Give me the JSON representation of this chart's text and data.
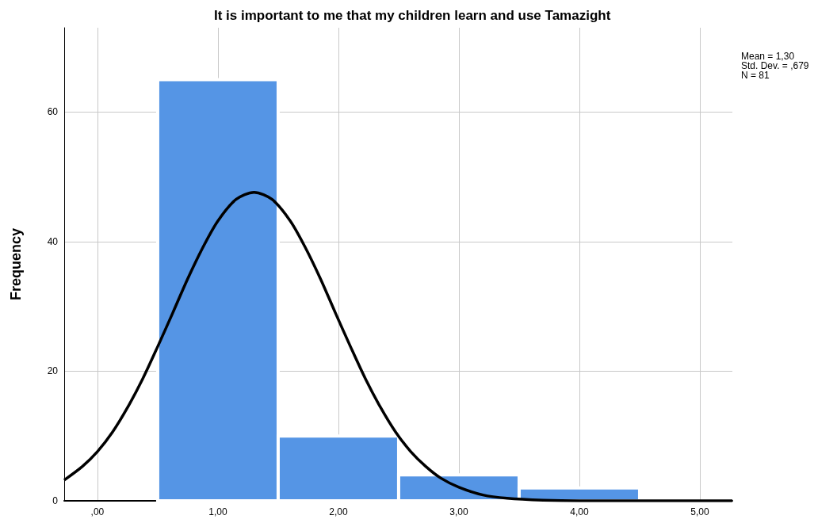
{
  "chart_data": {
    "type": "histogram",
    "title": "It is important to me that my children learn and use Tamazight",
    "ylabel": "Frequency",
    "bins": [
      0.5,
      1.5,
      2.5,
      3.5,
      4.5
    ],
    "series": [
      {
        "color": "#5595e5",
        "values": [
          65,
          10,
          4,
          2
        ]
      },
      {
        "type": "line",
        "color": "#000000",
        "x": [
          -0.276,
          -0.125,
          0,
          0.125,
          0.25,
          0.375,
          0.5,
          0.625,
          0.75,
          0.875,
          1.0,
          1.15,
          1.3,
          1.45,
          1.6,
          1.725,
          1.85,
          1.975,
          2.1,
          2.225,
          2.35,
          2.475,
          2.6,
          2.725,
          2.85,
          3.0,
          3.2,
          3.4,
          3.7,
          4.0,
          5.27
        ],
        "values": [
          3.2,
          5.3,
          7.6,
          10.6,
          14.4,
          18.8,
          23.8,
          29.0,
          34.3,
          39.1,
          43.2,
          46.5,
          47.6,
          46.5,
          43.2,
          39.1,
          34.3,
          29.0,
          23.8,
          18.8,
          14.4,
          10.6,
          7.6,
          5.3,
          3.5,
          2.1,
          0.9,
          0.4,
          0.1,
          0,
          0
        ]
      }
    ],
    "xlim": [
      -0.276,
      5.27
    ],
    "xticks": [
      {
        "value": 0,
        "label": ",00"
      },
      {
        "value": 1,
        "label": "1,00"
      },
      {
        "value": 2,
        "label": "2,00"
      },
      {
        "value": 3,
        "label": "3,00"
      },
      {
        "value": 4,
        "label": "4,00"
      },
      {
        "value": 5,
        "label": "5,00"
      }
    ],
    "ylim": [
      0,
      73
    ],
    "yticks": [
      0,
      20,
      40,
      60
    ],
    "grid": true,
    "marker": "none",
    "line_style": "solid",
    "annotations": [
      "Mean = 1,30",
      "Std. Dev. = ,679",
      "N = 81"
    ]
  }
}
